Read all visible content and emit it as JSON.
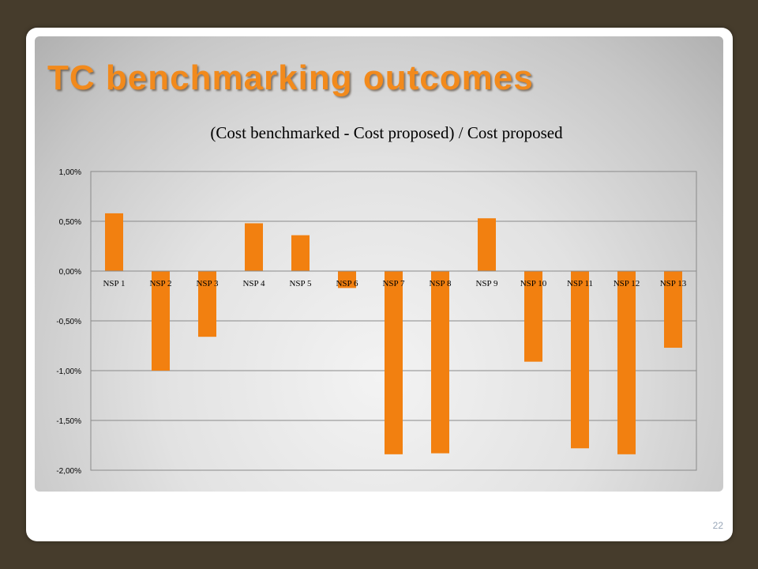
{
  "slide": {
    "title": "TC benchmarking outcomes",
    "page_number": "22"
  },
  "chart_data": {
    "type": "bar",
    "title": "(Cost benchmarked - Cost proposed) / Cost proposed",
    "xlabel": "",
    "ylabel": "",
    "categories": [
      "NSP 1",
      "NSP 2",
      "NSP 3",
      "NSP 4",
      "NSP 5",
      "NSP 6",
      "NSP 7",
      "NSP 8",
      "NSP 9",
      "NSP 10",
      "NSP 11",
      "NSP 12",
      "NSP 13"
    ],
    "values": [
      0.58,
      -1.0,
      -0.66,
      0.48,
      0.36,
      -0.17,
      -1.84,
      -1.83,
      0.53,
      -0.91,
      -1.78,
      -1.84,
      -0.77
    ],
    "unit": "%",
    "ylim": [
      -2.0,
      1.0
    ],
    "yticks": [
      1.0,
      0.5,
      0.0,
      -0.5,
      -1.0,
      -1.5,
      -2.0
    ],
    "ytick_labels": [
      "1,00%",
      "0,50%",
      "0,00%",
      "-0,50%",
      "-1,00%",
      "-1,50%",
      "-2,00%"
    ],
    "grid": true,
    "legend": "none",
    "bar_color": "#f28010"
  }
}
